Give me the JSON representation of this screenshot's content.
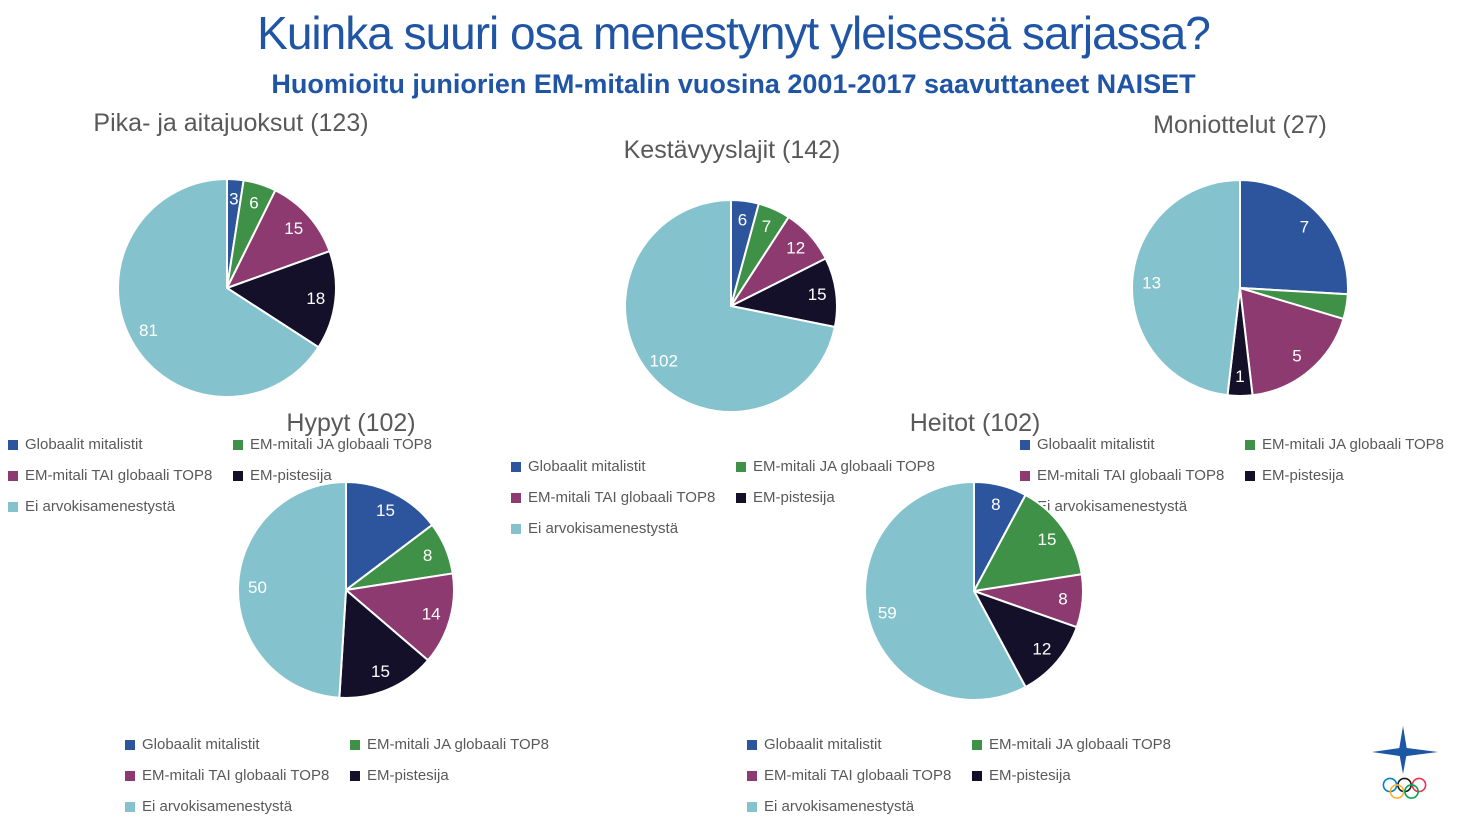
{
  "title": "Kuinka suuri osa menestynyt yleisessä sarjassa?",
  "subtitle": "Huomioitu juniorien EM-mitalin vuosina 2001-2017 saavuttaneet NAISET",
  "background_color": "#FFFFFF",
  "text_colors": {
    "title": "#2055A5",
    "chart_title": "#595959",
    "legend": "#595959",
    "value_label": "#FFFFFF"
  },
  "series_legend": [
    {
      "label": "Globaalit mitalistit",
      "color": "#2D559E"
    },
    {
      "label": "EM-mitali JA globaali TOP8",
      "color": "#3F9147"
    },
    {
      "label": "EM-mitali TAI globaali TOP8",
      "color": "#8D3A71"
    },
    {
      "label": "EM-pistesija",
      "color": "#14102A"
    },
    {
      "label": "Ei arvokisamenestystä",
      "color": "#84C3CD"
    }
  ],
  "chart_data": [
    {
      "type": "pie",
      "title": "Pika- ja aitajuoksut (123)",
      "total": 123,
      "categories": [
        "Globaalit mitalistit",
        "EM-mitali JA globaali TOP8",
        "EM-mitali TAI globaali TOP8",
        "EM-pistesija",
        "Ei arvokisamenestystä"
      ],
      "values": [
        3,
        6,
        15,
        18,
        81
      ],
      "value_labels_visible": [
        true,
        true,
        true,
        true,
        true
      ],
      "start_angle_deg": 0,
      "direction": "clockwise",
      "label_position": "inside",
      "legend_position": "below"
    },
    {
      "type": "pie",
      "title": "Kestävyyslajit (142)",
      "total": 142,
      "categories": [
        "Globaalit mitalistit",
        "EM-mitali JA globaali TOP8",
        "EM-mitali TAI globaali TOP8",
        "EM-pistesija",
        "Ei arvokisamenestystä"
      ],
      "values": [
        6,
        7,
        12,
        15,
        102
      ],
      "value_labels_visible": [
        true,
        true,
        true,
        true,
        true
      ],
      "start_angle_deg": 0,
      "direction": "clockwise",
      "label_position": "inside",
      "legend_position": "below"
    },
    {
      "type": "pie",
      "title": "Moniottelut (27)",
      "total": 27,
      "categories": [
        "Globaalit mitalistit",
        "EM-mitali JA globaali TOP8",
        "EM-mitali TAI globaali TOP8",
        "EM-pistesija",
        "Ei arvokisamenestystä"
      ],
      "values": [
        7,
        1,
        5,
        1,
        13
      ],
      "value_labels_visible": [
        true,
        false,
        true,
        true,
        true
      ],
      "start_angle_deg": 0,
      "direction": "clockwise",
      "label_position": "inside",
      "legend_position": "below"
    },
    {
      "type": "pie",
      "title": "Hypyt (102)",
      "total": 102,
      "categories": [
        "Globaalit mitalistit",
        "EM-mitali JA globaali TOP8",
        "EM-mitali TAI globaali TOP8",
        "EM-pistesija",
        "Ei arvokisamenestystä"
      ],
      "values": [
        15,
        8,
        14,
        15,
        50
      ],
      "value_labels_visible": [
        true,
        true,
        true,
        true,
        true
      ],
      "start_angle_deg": 0,
      "direction": "clockwise",
      "label_position": "inside",
      "legend_position": "below"
    },
    {
      "type": "pie",
      "title": "Heitot (102)",
      "total": 102,
      "categories": [
        "Globaalit mitalistit",
        "EM-mitali JA globaali TOP8",
        "EM-mitali TAI globaali TOP8",
        "EM-pistesija",
        "Ei arvokisamenestystä"
      ],
      "values": [
        8,
        15,
        8,
        12,
        59
      ],
      "value_labels_visible": [
        true,
        true,
        true,
        true,
        true
      ],
      "start_angle_deg": 0,
      "direction": "clockwise",
      "label_position": "inside",
      "legend_position": "below"
    }
  ],
  "logo": {
    "cross_color": "#1C57A5",
    "ring_colors": [
      "#0081C8",
      "#1A1A1A",
      "#EE334E",
      "#FCB131",
      "#00A651"
    ]
  }
}
